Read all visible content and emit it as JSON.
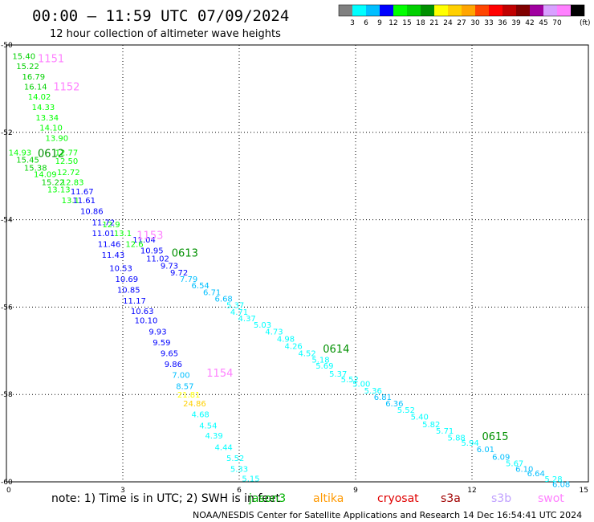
{
  "title": "00:00 – 11:59 UTC 07/09/2024",
  "subtitle": "12 hour collection of altimeter wave heights",
  "colorbar": {
    "colors": [
      "#808080",
      "#00ffff",
      "#00bfff",
      "#0000ff",
      "#00ff00",
      "#00d000",
      "#009000",
      "#ffff00",
      "#ffd000",
      "#ffa500",
      "#ff4500",
      "#ff0000",
      "#c00000",
      "#800000",
      "#a000a0",
      "#d8a0ff",
      "#ff80ff",
      "#000000"
    ],
    "labels": [
      "3",
      "6",
      "9",
      "12",
      "15",
      "18",
      "21",
      "24",
      "27",
      "30",
      "33",
      "36",
      "39",
      "42",
      "45",
      "70"
    ],
    "unit": "(ft)"
  },
  "note": "note: 1) Time is in UTC; 2) SWH is in feet",
  "satellites": [
    {
      "name": "jason3",
      "color": "#00b000"
    },
    {
      "name": "altika",
      "color": "#ff9900"
    },
    {
      "name": "cryosat",
      "color": "#e00000"
    },
    {
      "name": "s3a",
      "color": "#a00000"
    },
    {
      "name": "s3b",
      "color": "#c0a0ff"
    },
    {
      "name": "swot",
      "color": "#ff80ff"
    }
  ],
  "footer": "NOAA/NESDIS Center for Satellite Applications and Research   14 Dec 16:54:41 UTC 2024",
  "chart_data": {
    "type": "scatter",
    "xlim": [
      0,
      15
    ],
    "ylim": [
      -60,
      -50
    ],
    "xticks": [
      "0",
      "3",
      "6",
      "9",
      "12",
      "15"
    ],
    "yticks": [
      "-50",
      "-52",
      "-54",
      "-56",
      "-58",
      "-60"
    ],
    "grid": true,
    "pass_labels": [
      {
        "text": "1151",
        "x": 1.15,
        "y": -50.3,
        "color": "#ff80ff"
      },
      {
        "text": "1152",
        "x": 1.55,
        "y": -50.95,
        "color": "#ff80ff"
      },
      {
        "text": "0612",
        "x": 1.15,
        "y": -52.47,
        "color": "#009000"
      },
      {
        "text": "1153",
        "x": 3.7,
        "y": -54.35,
        "color": "#ff80ff"
      },
      {
        "text": "0613",
        "x": 4.6,
        "y": -54.75,
        "color": "#009000"
      },
      {
        "text": "0614",
        "x": 8.5,
        "y": -56.95,
        "color": "#009000"
      },
      {
        "text": "1154",
        "x": 5.5,
        "y": -57.5,
        "color": "#ff80ff"
      },
      {
        "text": "0615",
        "x": 12.6,
        "y": -58.95,
        "color": "#009000"
      }
    ],
    "points": [
      {
        "x": 0.45,
        "y": -50.25,
        "v": "15.40"
      },
      {
        "x": 0.55,
        "y": -50.48,
        "v": "15.22"
      },
      {
        "x": 0.7,
        "y": -50.72,
        "v": "16.79"
      },
      {
        "x": 0.75,
        "y": -50.95,
        "v": "16.14"
      },
      {
        "x": 0.85,
        "y": -51.18,
        "v": "14.02"
      },
      {
        "x": 0.95,
        "y": -51.42,
        "v": "14.33"
      },
      {
        "x": 1.05,
        "y": -51.65,
        "v": "13.34"
      },
      {
        "x": 1.15,
        "y": -51.88,
        "v": "14.10"
      },
      {
        "x": 1.3,
        "y": -52.12,
        "v": "13.90"
      },
      {
        "x": 0.35,
        "y": -52.45,
        "v": "14.93"
      },
      {
        "x": 1.55,
        "y": -52.45,
        "v": "12.77"
      },
      {
        "x": 0.55,
        "y": -52.62,
        "v": "15.45"
      },
      {
        "x": 1.55,
        "y": -52.65,
        "v": "12.50"
      },
      {
        "x": 0.75,
        "y": -52.8,
        "v": "15.38"
      },
      {
        "x": 1.0,
        "y": -52.95,
        "v": "14.09"
      },
      {
        "x": 1.6,
        "y": -52.9,
        "v": "12.72"
      },
      {
        "x": 1.2,
        "y": -53.13,
        "v": "15.22"
      },
      {
        "x": 1.7,
        "y": -53.13,
        "v": "12.83"
      },
      {
        "x": 1.35,
        "y": -53.3,
        "v": "13.13"
      },
      {
        "x": 1.95,
        "y": -53.35,
        "v": "11.67"
      },
      {
        "x": 1.65,
        "y": -53.55,
        "v": "13.1"
      },
      {
        "x": 2.0,
        "y": -53.55,
        "v": "11.61"
      },
      {
        "x": 2.2,
        "y": -53.8,
        "v": "10.86"
      },
      {
        "x": 2.5,
        "y": -54.05,
        "v": "11.72"
      },
      {
        "x": 2.7,
        "y": -54.1,
        "v": "12.9"
      },
      {
        "x": 2.5,
        "y": -54.3,
        "v": "11.01"
      },
      {
        "x": 3.0,
        "y": -54.3,
        "v": "13.1"
      },
      {
        "x": 3.55,
        "y": -54.45,
        "v": "11.04"
      },
      {
        "x": 2.65,
        "y": -54.55,
        "v": "11.46"
      },
      {
        "x": 3.3,
        "y": -54.55,
        "v": "12.6"
      },
      {
        "x": 3.75,
        "y": -54.7,
        "v": "10.95"
      },
      {
        "x": 2.75,
        "y": -54.8,
        "v": "11.43"
      },
      {
        "x": 3.9,
        "y": -54.88,
        "v": "11.02"
      },
      {
        "x": 4.2,
        "y": -55.05,
        "v": "9.73"
      },
      {
        "x": 2.95,
        "y": -55.1,
        "v": "10.53"
      },
      {
        "x": 4.45,
        "y": -55.2,
        "v": "9.72"
      },
      {
        "x": 3.1,
        "y": -55.35,
        "v": "10.69"
      },
      {
        "x": 4.7,
        "y": -55.35,
        "v": "7.79"
      },
      {
        "x": 5.0,
        "y": -55.5,
        "v": "6.54"
      },
      {
        "x": 3.15,
        "y": -55.6,
        "v": "10.85"
      },
      {
        "x": 5.3,
        "y": -55.65,
        "v": "6.71"
      },
      {
        "x": 5.6,
        "y": -55.8,
        "v": "6.68"
      },
      {
        "x": 3.3,
        "y": -55.85,
        "v": "11.17"
      },
      {
        "x": 5.9,
        "y": -55.95,
        "v": "5.37"
      },
      {
        "x": 3.5,
        "y": -56.08,
        "v": "10.63"
      },
      {
        "x": 6.0,
        "y": -56.1,
        "v": "4.71"
      },
      {
        "x": 3.6,
        "y": -56.3,
        "v": "10.10"
      },
      {
        "x": 6.2,
        "y": -56.25,
        "v": "4.37"
      },
      {
        "x": 6.6,
        "y": -56.4,
        "v": "5.03"
      },
      {
        "x": 3.9,
        "y": -56.55,
        "v": "9.93"
      },
      {
        "x": 6.9,
        "y": -56.55,
        "v": "4.73"
      },
      {
        "x": 7.2,
        "y": -56.72,
        "v": "4.98"
      },
      {
        "x": 4.0,
        "y": -56.8,
        "v": "9.59"
      },
      {
        "x": 7.4,
        "y": -56.88,
        "v": "4.26"
      },
      {
        "x": 7.75,
        "y": -57.05,
        "v": "4.52"
      },
      {
        "x": 4.2,
        "y": -57.05,
        "v": "9.65"
      },
      {
        "x": 8.1,
        "y": -57.2,
        "v": "5.18"
      },
      {
        "x": 4.3,
        "y": -57.3,
        "v": "9.86"
      },
      {
        "x": 8.2,
        "y": -57.33,
        "v": "5.69"
      },
      {
        "x": 8.55,
        "y": -57.52,
        "v": "5.37"
      },
      {
        "x": 4.5,
        "y": -57.55,
        "v": "7.00"
      },
      {
        "x": 8.85,
        "y": -57.65,
        "v": "5.52"
      },
      {
        "x": 4.6,
        "y": -57.8,
        "v": "8.57"
      },
      {
        "x": 9.15,
        "y": -57.75,
        "v": "5.00"
      },
      {
        "x": 9.45,
        "y": -57.9,
        "v": "5.36"
      },
      {
        "x": 4.7,
        "y": -58.0,
        "v": "21.81"
      },
      {
        "x": 9.7,
        "y": -58.05,
        "v": "6.81"
      },
      {
        "x": 4.85,
        "y": -58.2,
        "v": "24.86"
      },
      {
        "x": 10.0,
        "y": -58.2,
        "v": "6.36"
      },
      {
        "x": 10.3,
        "y": -58.35,
        "v": "5.52"
      },
      {
        "x": 5.0,
        "y": -58.45,
        "v": "4.68"
      },
      {
        "x": 10.65,
        "y": -58.5,
        "v": "5.40"
      },
      {
        "x": 10.95,
        "y": -58.68,
        "v": "5.82"
      },
      {
        "x": 5.2,
        "y": -58.7,
        "v": "4.54"
      },
      {
        "x": 11.3,
        "y": -58.82,
        "v": "5.71"
      },
      {
        "x": 11.6,
        "y": -58.98,
        "v": "5.88"
      },
      {
        "x": 5.35,
        "y": -58.93,
        "v": "4.39"
      },
      {
        "x": 11.95,
        "y": -59.1,
        "v": "5.94"
      },
      {
        "x": 5.6,
        "y": -59.2,
        "v": "4.44"
      },
      {
        "x": 12.35,
        "y": -59.25,
        "v": "6.01"
      },
      {
        "x": 12.75,
        "y": -59.42,
        "v": "6.09"
      },
      {
        "x": 5.9,
        "y": -59.45,
        "v": "5.52"
      },
      {
        "x": 13.1,
        "y": -59.57,
        "v": "5.67"
      },
      {
        "x": 6.0,
        "y": -59.7,
        "v": "5.33"
      },
      {
        "x": 13.35,
        "y": -59.7,
        "v": "6.10"
      },
      {
        "x": 13.65,
        "y": -59.8,
        "v": "6.64"
      },
      {
        "x": 6.3,
        "y": -59.92,
        "v": "5.15"
      },
      {
        "x": 14.1,
        "y": -59.93,
        "v": "5.28"
      },
      {
        "x": 14.3,
        "y": -60.05,
        "v": "6.08"
      }
    ]
  }
}
